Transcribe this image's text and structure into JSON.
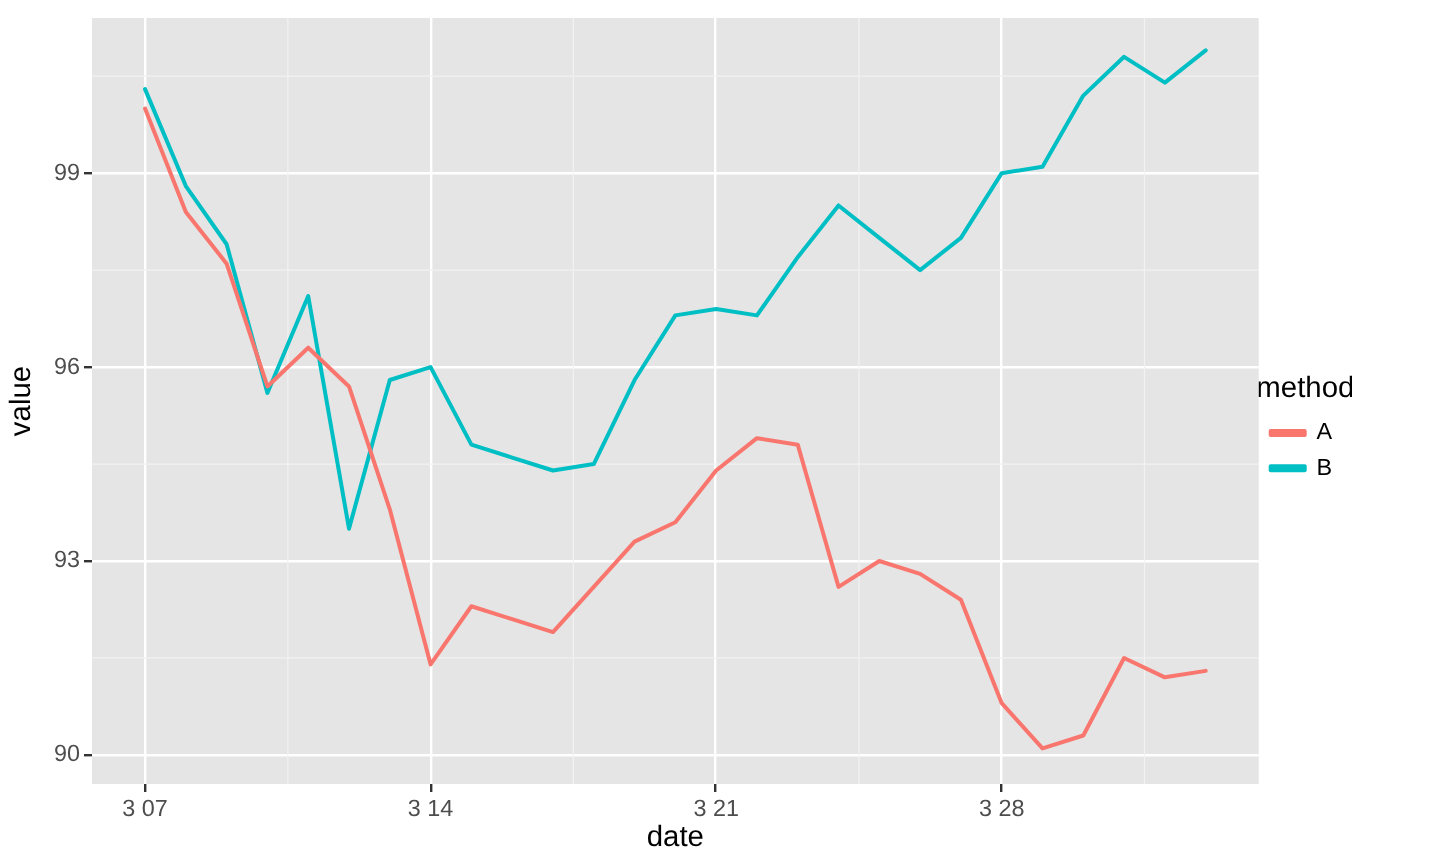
{
  "chart_data": {
    "type": "line",
    "xlabel": "date",
    "ylabel": "value",
    "legend_title": "method",
    "x": [
      "--03-07",
      "--03-08",
      "--03-09",
      "--03-10",
      "--03-11",
      "--03-12",
      "--03-13",
      "--03-14",
      "--03-15",
      "--03-16",
      "--03-17",
      "--03-18",
      "--03-19",
      "--03-20",
      "--03-21",
      "--03-22",
      "--03-23",
      "--03-24",
      "--03-25",
      "--03-26",
      "--03-27",
      "--03-28",
      "--03-29",
      "--03-30",
      "--03-31",
      "--04-01",
      "--04-02"
    ],
    "series": [
      {
        "name": "A",
        "color": "#f8766d",
        "values": [
          100.0,
          98.4,
          97.6,
          95.7,
          96.3,
          95.7,
          93.8,
          91.4,
          92.3,
          92.1,
          91.9,
          92.6,
          93.3,
          93.6,
          94.4,
          94.9,
          94.8,
          92.6,
          93.0,
          92.8,
          92.4,
          90.8,
          90.1,
          90.3,
          91.5,
          91.2,
          91.3
        ]
      },
      {
        "name": "B",
        "color": "#00bfc4",
        "values": [
          100.3,
          98.8,
          97.9,
          95.6,
          97.1,
          93.5,
          95.8,
          96.0,
          94.8,
          94.6,
          94.4,
          94.5,
          95.8,
          96.8,
          96.9,
          96.8,
          97.7,
          98.5,
          98.0,
          97.5,
          98.0,
          99.0,
          99.1,
          100.2,
          100.8,
          100.4,
          100.9
        ]
      }
    ],
    "xlim": [
      "--03-05T16:48",
      "--04-03T07:12"
    ],
    "xticks": [
      {
        "value": "--03-07",
        "label": "3 07"
      },
      {
        "value": "--03-14",
        "label": "3 14"
      },
      {
        "value": "--03-21",
        "label": "3 21"
      },
      {
        "value": "--03-28",
        "label": "3 28"
      }
    ],
    "ylim": [
      89.55,
      101.4
    ],
    "yticks": [
      90,
      93,
      96,
      99
    ],
    "grid": true,
    "legend": "right",
    "marker": "none",
    "line_style": "solid"
  }
}
